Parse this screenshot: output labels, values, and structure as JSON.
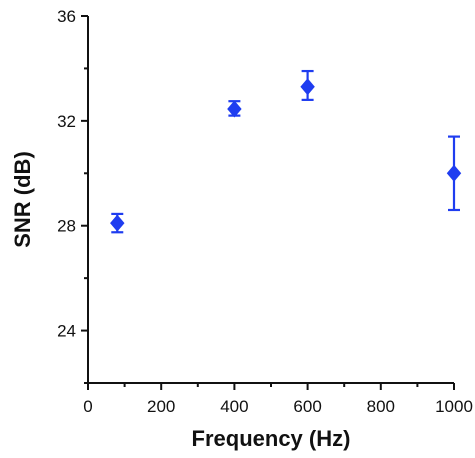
{
  "chart_data": {
    "type": "scatter",
    "xlabel": "Frequency (Hz)",
    "ylabel": "SNR (dB)",
    "xlim": [
      0,
      1000
    ],
    "ylim": [
      22,
      36
    ],
    "x_ticks": [
      0,
      200,
      400,
      600,
      800,
      1000
    ],
    "x_minor_ticks": [
      100,
      300,
      500,
      700,
      900
    ],
    "y_ticks": [
      24,
      28,
      32,
      36
    ],
    "y_minor_ticks": [
      22,
      26,
      30,
      34
    ],
    "grid": false,
    "marker": "diamond",
    "color": "#1f3df0",
    "series": [
      {
        "points": [
          {
            "x": 80,
            "y": 28.1,
            "err_low": 0.35,
            "err_high": 0.35
          },
          {
            "x": 400,
            "y": 32.45,
            "err_low": 0.25,
            "err_high": 0.3
          },
          {
            "x": 600,
            "y": 33.3,
            "err_low": 0.5,
            "err_high": 0.6
          },
          {
            "x": 1000,
            "y": 30.0,
            "err_low": 1.4,
            "err_high": 1.4
          }
        ]
      }
    ]
  }
}
